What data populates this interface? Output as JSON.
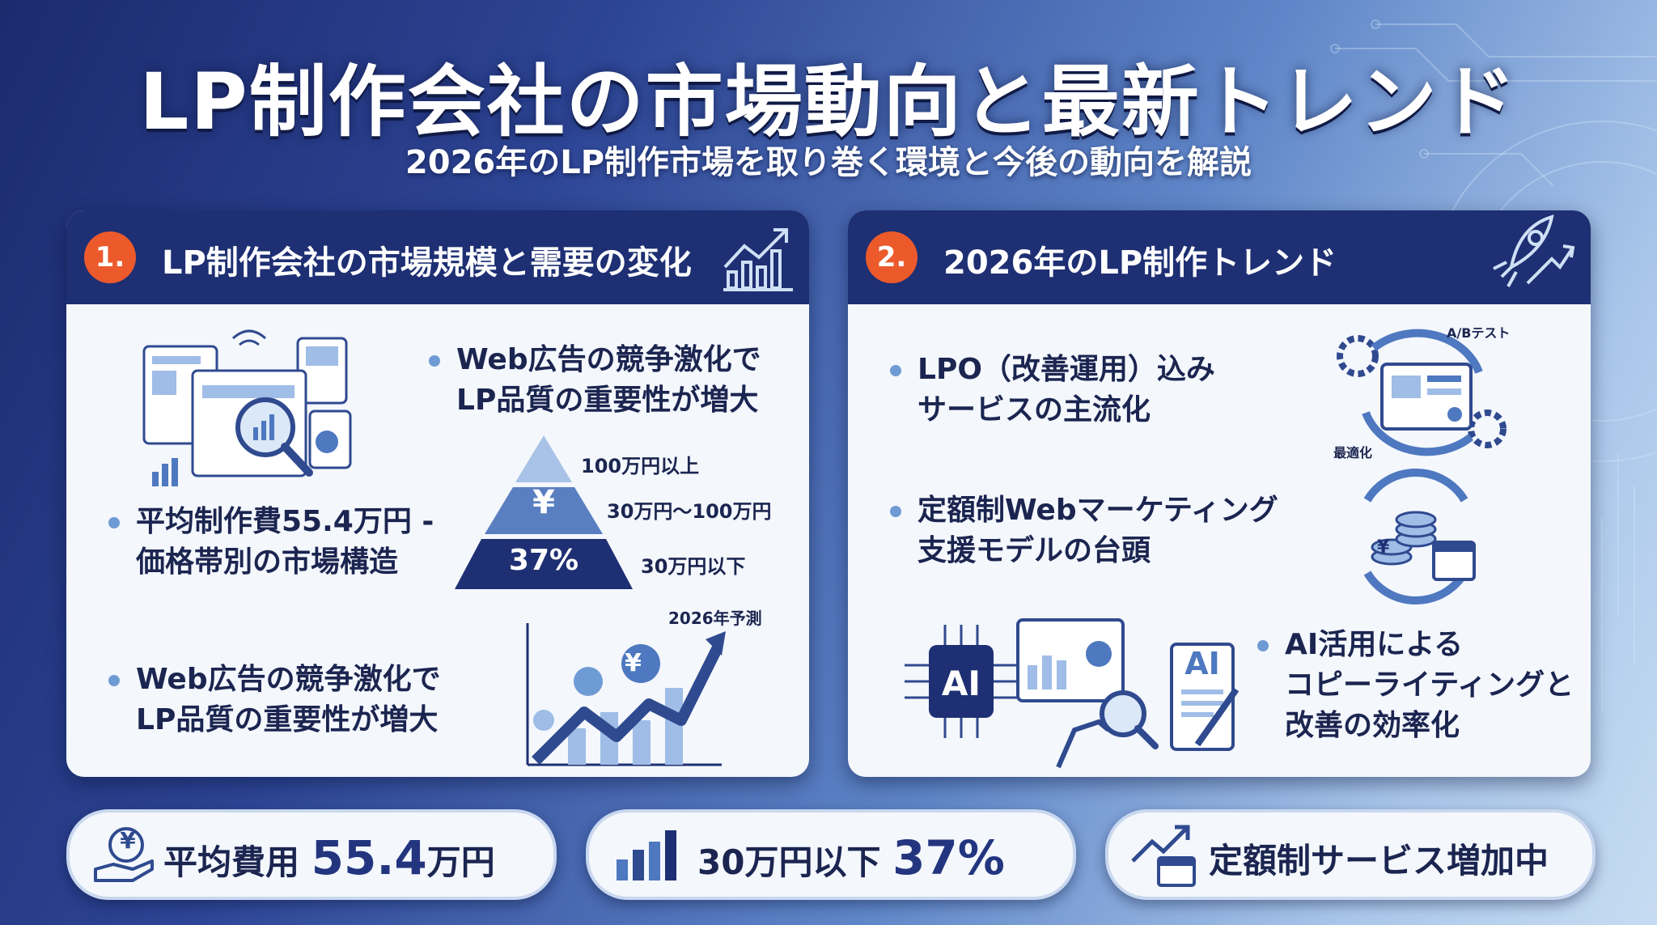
{
  "header": {
    "title": "LP制作会社の市場動向と最新トレンド",
    "subtitle": "2026年のLP制作市場を取り巻く環境と今後の動向を解説"
  },
  "left_panel": {
    "number": "1.",
    "title": "LP制作会社の市場規模と需要の変化",
    "bullets": [
      "Web広告の競争激化で\nLP品質の重要性が増大",
      "平均制作費55.4万円 -\n価格帯別の市場構造",
      "Web広告の競争激化で\nLP品質の重要性が増大"
    ],
    "pyramid": {
      "tiers": [
        "100万円以上",
        "30万円〜100万円",
        "30万円以下"
      ],
      "yen_symbol": "¥",
      "bottom_value": "37%"
    },
    "forecast_label": "2026年予測",
    "yen_symbol": "¥"
  },
  "right_panel": {
    "number": "2.",
    "title": "2026年のLP制作トレンド",
    "bullets": [
      "LPO（改善運用）込み\nサービスの主流化",
      "定額制Webマーケティング\n支援モデルの台頭",
      "AI活用による\nコピーライティングと\n改善の効率化"
    ],
    "cycle_labels": [
      "A/Bテスト",
      "最適化"
    ],
    "ai_label": "AI",
    "yen_symbol": "¥"
  },
  "stats": [
    {
      "label": "平均費用 ",
      "value": "55.4",
      "unit": "万円",
      "icon": "yen-hand-icon",
      "yen_symbol": "¥"
    },
    {
      "label": "30万円以下 ",
      "value": "37%",
      "unit": "",
      "icon": "bar-chart-icon"
    },
    {
      "label": "定額制サービス増加中",
      "value": "",
      "unit": "",
      "icon": "growth-calendar-icon"
    }
  ],
  "colors": {
    "navy": "#1e2f73",
    "accent_orange": "#ec5a2c",
    "light_blue": "#6f9bd4",
    "panel_bg": "#f4f7fc"
  }
}
